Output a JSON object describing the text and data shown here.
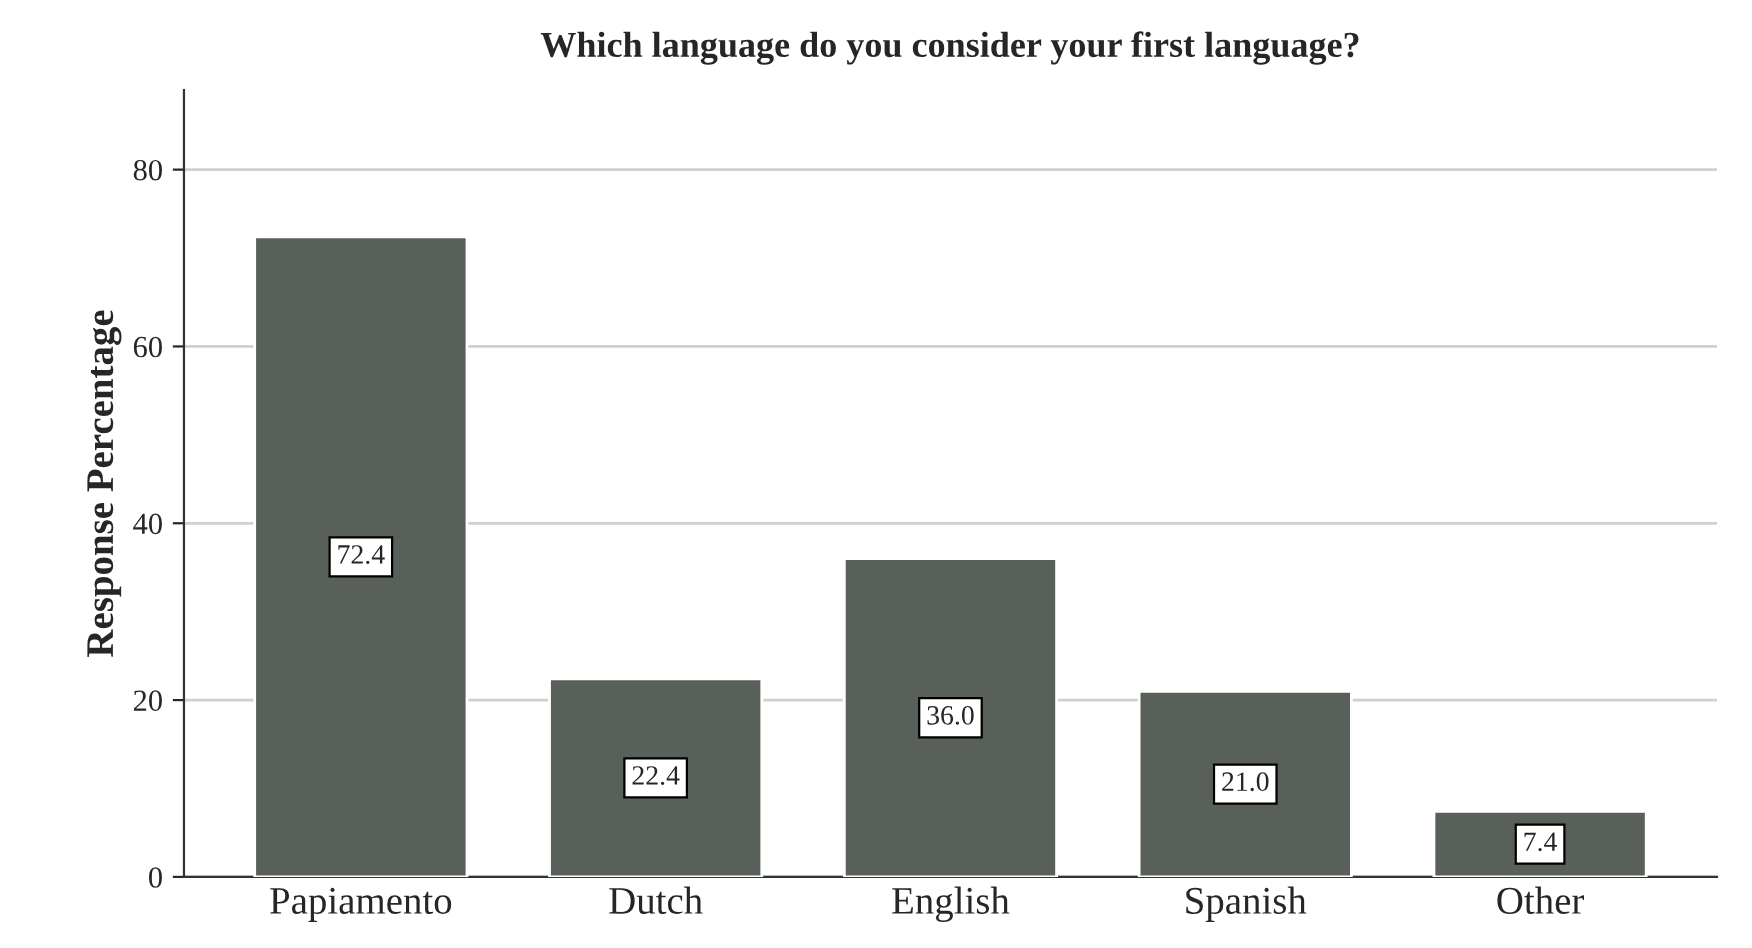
{
  "chart_data": {
    "type": "bar",
    "title": "Which language do you consider your first language?",
    "ylabel": "Response Percentage",
    "categories": [
      "Papiamento",
      "Dutch",
      "English",
      "Spanish",
      "Other"
    ],
    "values": [
      72.4,
      22.4,
      36.0,
      21.0,
      7.4
    ],
    "value_labels": [
      "72.4",
      "22.4",
      "36.0",
      "21.0",
      "7.4"
    ],
    "color": "#596059",
    "ylim": [
      0,
      89
    ],
    "yticks": [
      0,
      20,
      40,
      60,
      80
    ],
    "grid": "y"
  }
}
